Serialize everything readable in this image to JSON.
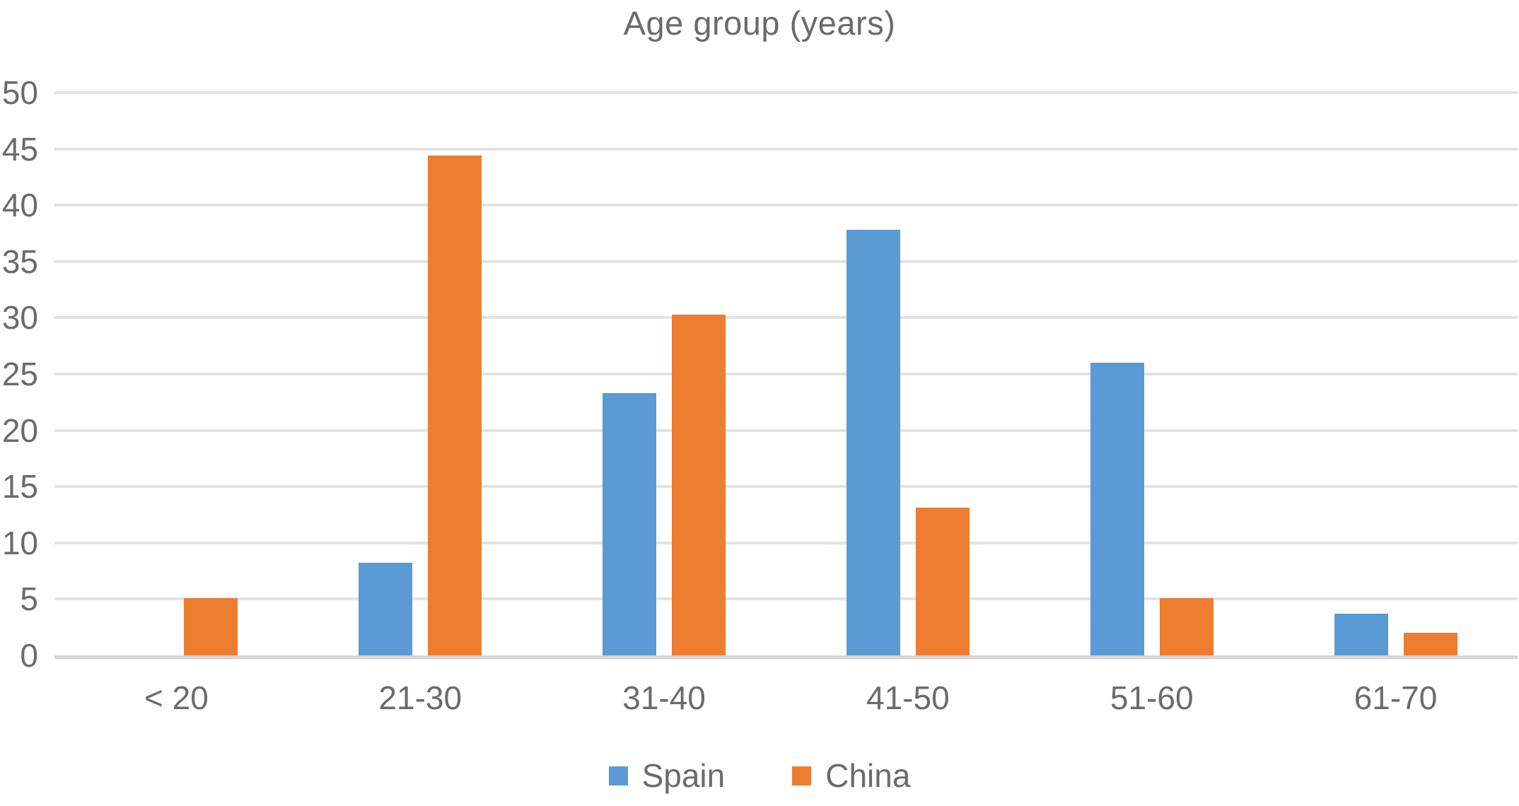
{
  "title": "Age group (years)",
  "colors": {
    "spain_blue": "#5B9BD5",
    "china_orange": "#ED7D31",
    "text_gray": "#6b6b6b",
    "gridline": "#e2e2e2",
    "baseline": "#d6d6d6"
  },
  "chart_data": {
    "type": "bar",
    "title": "Age group (years)",
    "categories": [
      "< 20",
      "21-30",
      "31-40",
      "41-50",
      "51-60",
      "61-70"
    ],
    "series": [
      {
        "name": "Spain",
        "color": "#5B9BD5",
        "values": [
          0,
          8.2,
          23.3,
          37.8,
          26.0,
          3.7
        ]
      },
      {
        "name": "China",
        "color": "#ED7D31",
        "values": [
          5.1,
          44.4,
          30.3,
          13.1,
          5.1,
          2.0
        ]
      }
    ],
    "xlabel": "",
    "ylabel": "",
    "ylim": [
      0,
      50
    ],
    "yticks": [
      0,
      5,
      10,
      15,
      20,
      25,
      30,
      35,
      40,
      45,
      50
    ],
    "grid": true,
    "legend_position": "bottom"
  },
  "legend": {
    "items": [
      {
        "label": "Spain"
      },
      {
        "label": "China"
      }
    ]
  }
}
